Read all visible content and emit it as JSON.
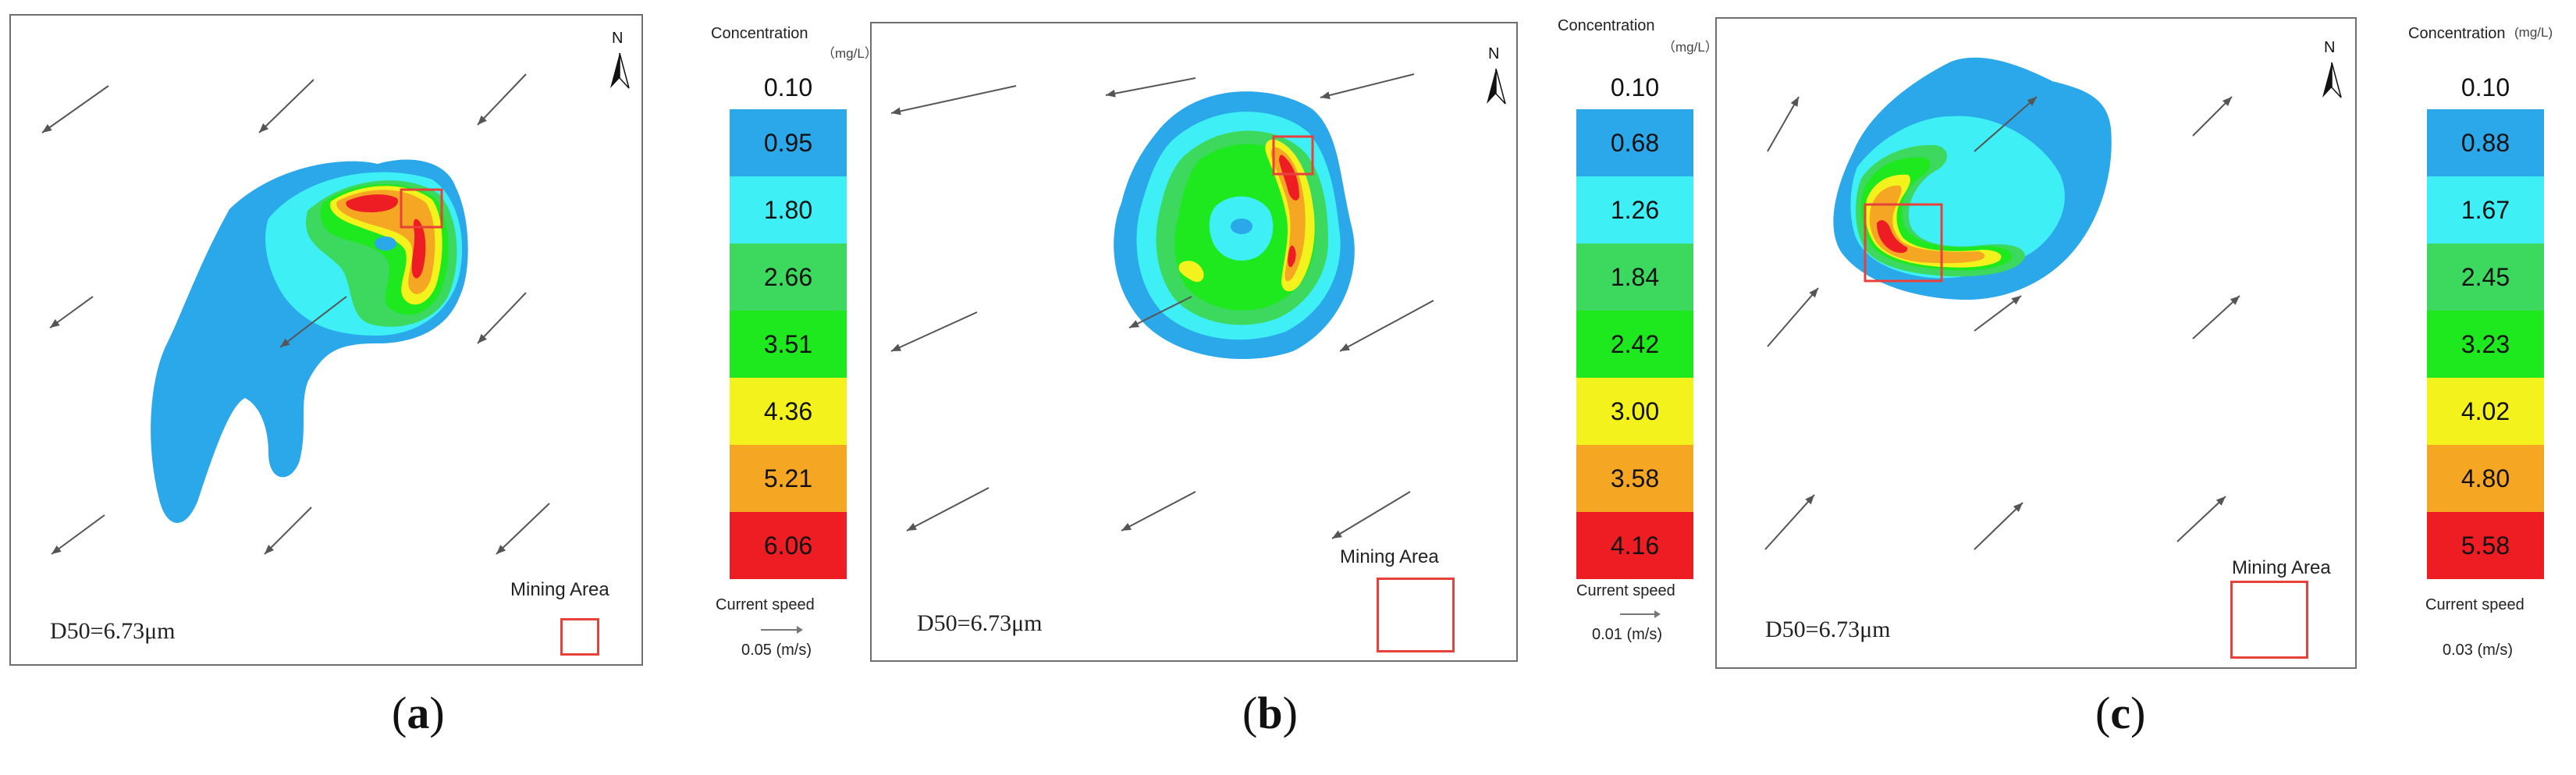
{
  "panels": [
    {
      "id": "a",
      "caption_open": "(",
      "caption_letter": "a",
      "caption_close": ")",
      "north_label": "N",
      "d50_label": "D50=6.73μm",
      "mining_area_label": "Mining Area",
      "legend": {
        "title": "Concentration",
        "unit": "（mg/L）",
        "top_value": "0.10",
        "bands": [
          {
            "value": "0.95",
            "color": "#2aa8ea"
          },
          {
            "value": "1.80",
            "color": "#3ef0f5"
          },
          {
            "value": "2.66",
            "color": "#3dd85e"
          },
          {
            "value": "3.51",
            "color": "#1ee81e"
          },
          {
            "value": "4.36",
            "color": "#f4f21c"
          },
          {
            "value": "5.21",
            "color": "#f5a623"
          },
          {
            "value": "6.06",
            "color": "#ee1d24"
          }
        ],
        "current_speed_label": "Current speed",
        "current_speed_value": "0.05 (m/s)"
      }
    },
    {
      "id": "b",
      "caption_open": "(",
      "caption_letter": "b",
      "caption_close": ")",
      "north_label": "N",
      "d50_label": "D50=6.73μm",
      "mining_area_label": "Mining Area",
      "legend": {
        "title": "Concentration",
        "unit": "（mg/L）",
        "top_value": "0.10",
        "bands": [
          {
            "value": "0.68",
            "color": "#2aa8ea"
          },
          {
            "value": "1.26",
            "color": "#3ef0f5"
          },
          {
            "value": "1.84",
            "color": "#3dd85e"
          },
          {
            "value": "2.42",
            "color": "#1ee81e"
          },
          {
            "value": "3.00",
            "color": "#f4f21c"
          },
          {
            "value": "3.58",
            "color": "#f5a623"
          },
          {
            "value": "4.16",
            "color": "#ee1d24"
          }
        ],
        "current_speed_label": "Current speed",
        "current_speed_value": "0.01 (m/s)"
      }
    },
    {
      "id": "c",
      "caption_open": "(",
      "caption_letter": "c",
      "caption_close": ")",
      "north_label": "N",
      "d50_label": "D50=6.73μm",
      "mining_area_label": "Mining Area",
      "legend": {
        "title": "Concentration",
        "unit": "(mg/L)",
        "top_value": "0.10",
        "bands": [
          {
            "value": "0.88",
            "color": "#2aa8ea"
          },
          {
            "value": "1.67",
            "color": "#3ef0f5"
          },
          {
            "value": "2.45",
            "color": "#3dd85e"
          },
          {
            "value": "3.23",
            "color": "#1ee81e"
          },
          {
            "value": "4.02",
            "color": "#f4f21c"
          },
          {
            "value": "4.80",
            "color": "#f5a623"
          },
          {
            "value": "5.58",
            "color": "#ee1d24"
          }
        ],
        "current_speed_label": "Current speed",
        "current_speed_value": "0.03 (m/s)"
      }
    }
  ],
  "colors": {
    "band_0": "#2aa8ea",
    "band_1": "#3ef0f5",
    "band_2": "#3dd85e",
    "band_3": "#1ee81e",
    "band_4": "#f4f21c",
    "band_5": "#f5a623",
    "band_6": "#ee1d24",
    "mining_area_box": "#e8403a"
  }
}
